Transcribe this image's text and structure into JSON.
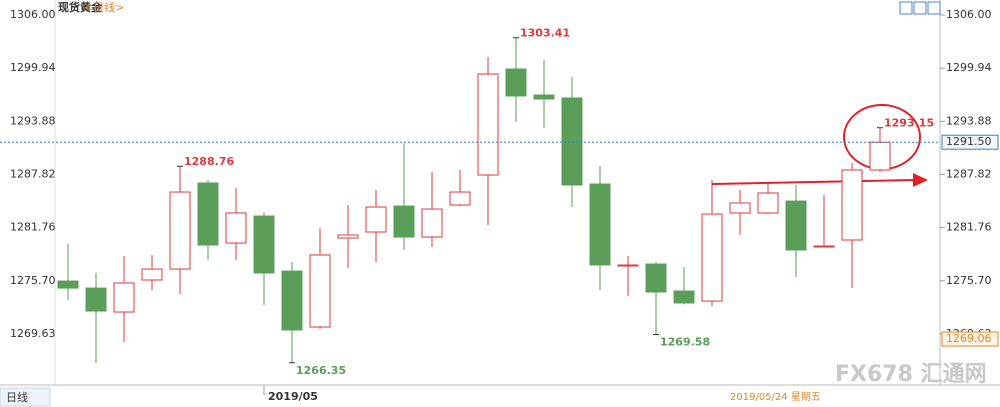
{
  "chart_data": {
    "type": "candlestick",
    "title": "现货黄金",
    "subtitle": "<日线>",
    "categories": [
      null,
      null,
      null,
      null,
      null,
      null,
      null,
      null,
      null,
      null,
      null,
      null,
      null,
      null,
      null,
      null,
      null,
      null,
      null,
      null,
      null,
      null,
      null,
      null,
      null,
      null,
      null,
      null,
      null,
      null
    ],
    "series": [
      {
        "name": null,
        "up_color": "#e0383e",
        "down_color": "#5a9e5a",
        "open": [
          1275.67,
          1274.87,
          1272.14,
          1275.79,
          1277.04,
          1286.85,
          1280.0,
          1283.08,
          1276.81,
          1270.43,
          1280.58,
          1281.26,
          1284.22,
          1280.69,
          1284.34,
          1287.76,
          1299.84,
          1296.88,
          1296.54,
          1286.73,
          1277.4,
          1277.61,
          1274.53,
          1273.39,
          1283.43,
          1283.43,
          1284.79,
          1279.55,
          1280.35,
          1288.33
        ],
        "high": [
          1279.89,
          1276.59,
          1278.52,
          1278.64,
          1288.76,
          1287.19,
          1286.28,
          1283.5,
          1277.84,
          1281.72,
          1284.34,
          1286.05,
          1291.41,
          1288.1,
          1288.33,
          1301.21,
          1303.41,
          1300.87,
          1298.93,
          1288.78,
          1278.52,
          1277.84,
          1277.27,
          1287.19,
          1286.05,
          1286.85,
          1286.62,
          1285.48,
          1289.13,
          1293.15
        ],
        "low": [
          1273.51,
          1266.32,
          1268.72,
          1274.65,
          1274.19,
          1278.07,
          1278.07,
          1272.94,
          1266.35,
          1270.2,
          1277.16,
          1277.84,
          1279.21,
          1279.55,
          1284.2,
          1282.06,
          1293.8,
          1293.12,
          1284.11,
          1274.65,
          1273.96,
          1269.58,
          1273.0,
          1272.82,
          1280.92,
          1283.3,
          1276.13,
          1279.5,
          1274.88,
          1288.1
        ],
        "close": [
          1274.87,
          1272.25,
          1275.45,
          1277.04,
          1285.82,
          1279.78,
          1283.43,
          1276.59,
          1270.09,
          1278.64,
          1280.92,
          1284.11,
          1280.69,
          1283.88,
          1285.82,
          1299.27,
          1296.77,
          1296.42,
          1286.62,
          1277.5,
          1277.5,
          1274.42,
          1273.17,
          1283.31,
          1284.57,
          1285.71,
          1279.21,
          1279.67,
          1288.33,
          1291.5
        ]
      }
    ],
    "ylim": [
      1263.82,
      1307.71
    ],
    "yticks": [
      {
        "value": 1306,
        "label": "1306.00"
      },
      1299.94,
      1293.88,
      1287.82,
      1281.76,
      {
        "value": 1275.7,
        "label": "1275.70"
      },
      1269.63
    ],
    "max_labels": [
      1288.76,
      1303.41,
      1293.15
    ],
    "min_labels": [
      1266.35,
      1269.58
    ],
    "price_line": {
      "value": 1291.5,
      "label": "1291.50",
      "color": "#3a7fc0"
    },
    "range_low": {
      "value": 1269.06,
      "label": "1269.06"
    },
    "x_label": "2019/05",
    "cursor_label": "2019/05/24 星期五",
    "period_button": "日线",
    "watermark": "FX678 汇通网"
  }
}
